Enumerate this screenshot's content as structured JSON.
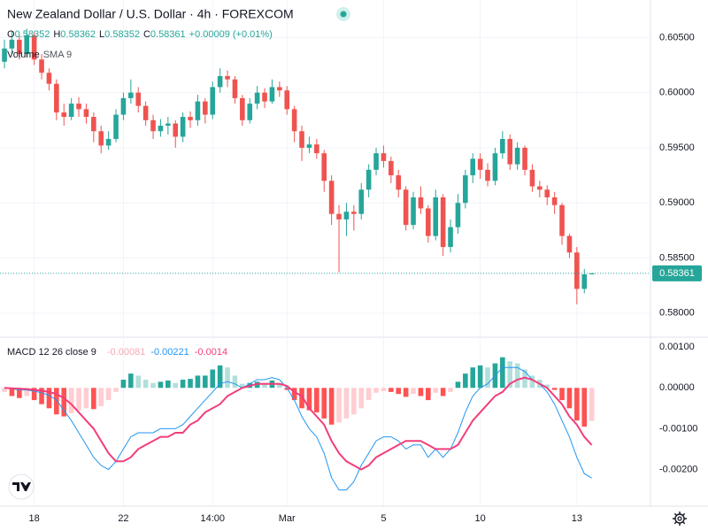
{
  "chart_data": [
    {
      "type": "candlestick",
      "title": "New Zealand Dollar / U.S. Dollar · 4h · FOREXCOM",
      "ohlc_labels": [
        "O",
        "H",
        "L",
        "C"
      ],
      "change": "+0.00009 (+0.01%)",
      "indicator": [
        "Volume",
        "SMA 9"
      ],
      "up_color": "#26a69a",
      "down_color": "#ef5350",
      "open": [
        0.6028,
        0.604,
        0.6048,
        0.6035,
        0.6052,
        0.603,
        0.6018,
        0.6008,
        0.5982,
        0.5978,
        0.599,
        0.5985,
        0.5978,
        0.5965,
        0.5952,
        0.5958,
        0.598,
        0.5995,
        0.6,
        0.5988,
        0.5975,
        0.5965,
        0.597,
        0.5972,
        0.596,
        0.5978,
        0.5975,
        0.5992,
        0.598,
        0.6005,
        0.6015,
        0.6012,
        0.5995,
        0.5975,
        0.599,
        0.6,
        0.5992,
        0.6005,
        0.6002,
        0.5985,
        0.5965,
        0.595,
        0.5953,
        0.5945,
        0.592,
        0.589,
        0.5885,
        0.5892,
        0.589,
        0.5912,
        0.593,
        0.5945,
        0.5938,
        0.5925,
        0.5912,
        0.588,
        0.5905,
        0.5895,
        0.587,
        0.5905,
        0.586,
        0.5878,
        0.59,
        0.5925,
        0.594,
        0.593,
        0.592,
        0.5945,
        0.5958,
        0.5935,
        0.595,
        0.593,
        0.5915,
        0.5912,
        0.5905,
        0.5898,
        0.587,
        0.5855,
        0.5822,
        0.58352
      ],
      "high": [
        0.6048,
        0.6056,
        0.6052,
        0.6058,
        0.6055,
        0.6035,
        0.6022,
        0.6012,
        0.599,
        0.5995,
        0.5996,
        0.599,
        0.5982,
        0.597,
        0.5965,
        0.5985,
        0.6,
        0.6012,
        0.6005,
        0.5992,
        0.598,
        0.5976,
        0.5978,
        0.5975,
        0.5982,
        0.5983,
        0.5998,
        0.5995,
        0.601,
        0.6022,
        0.602,
        0.6015,
        0.5998,
        0.5995,
        0.6006,
        0.6004,
        0.6012,
        0.601,
        0.6006,
        0.5988,
        0.597,
        0.596,
        0.5958,
        0.5948,
        0.5925,
        0.5898,
        0.59,
        0.5898,
        0.5918,
        0.5935,
        0.595,
        0.5952,
        0.5942,
        0.593,
        0.5915,
        0.591,
        0.5915,
        0.5898,
        0.5912,
        0.5908,
        0.5885,
        0.5908,
        0.593,
        0.5945,
        0.5945,
        0.5936,
        0.595,
        0.5965,
        0.5962,
        0.5955,
        0.5952,
        0.5935,
        0.592,
        0.5916,
        0.591,
        0.59,
        0.5872,
        0.586,
        0.584,
        0.58362
      ],
      "low": [
        0.6022,
        0.6035,
        0.603,
        0.6032,
        0.6025,
        0.6012,
        0.6002,
        0.5975,
        0.597,
        0.5975,
        0.5978,
        0.5972,
        0.5955,
        0.5945,
        0.5948,
        0.5955,
        0.5975,
        0.599,
        0.5982,
        0.597,
        0.5958,
        0.596,
        0.5962,
        0.595,
        0.5955,
        0.5968,
        0.597,
        0.5972,
        0.5976,
        0.6,
        0.6005,
        0.599,
        0.597,
        0.5972,
        0.5985,
        0.5986,
        0.599,
        0.5996,
        0.598,
        0.5955,
        0.5938,
        0.5945,
        0.594,
        0.591,
        0.588,
        0.5837,
        0.587,
        0.5875,
        0.5885,
        0.5905,
        0.5925,
        0.5932,
        0.5918,
        0.5905,
        0.5875,
        0.5876,
        0.589,
        0.5864,
        0.5866,
        0.5852,
        0.5855,
        0.5872,
        0.5895,
        0.5918,
        0.5922,
        0.5915,
        0.5916,
        0.594,
        0.593,
        0.593,
        0.5925,
        0.591,
        0.5905,
        0.5898,
        0.589,
        0.5862,
        0.585,
        0.5808,
        0.5818,
        0.58352
      ],
      "close": [
        0.604,
        0.6048,
        0.6035,
        0.6052,
        0.603,
        0.6018,
        0.6008,
        0.5982,
        0.5978,
        0.599,
        0.5985,
        0.5978,
        0.5965,
        0.5952,
        0.5958,
        0.598,
        0.5995,
        0.6,
        0.5988,
        0.5975,
        0.5965,
        0.597,
        0.5972,
        0.596,
        0.5978,
        0.5975,
        0.5992,
        0.598,
        0.6005,
        0.6015,
        0.6012,
        0.5995,
        0.5975,
        0.599,
        0.6,
        0.5992,
        0.6005,
        0.6002,
        0.5985,
        0.5965,
        0.595,
        0.5953,
        0.5945,
        0.592,
        0.589,
        0.5885,
        0.5892,
        0.589,
        0.5912,
        0.593,
        0.5945,
        0.5938,
        0.5925,
        0.5912,
        0.588,
        0.5905,
        0.5895,
        0.587,
        0.5905,
        0.586,
        0.5878,
        0.59,
        0.5925,
        0.594,
        0.593,
        0.592,
        0.5945,
        0.5958,
        0.5935,
        0.595,
        0.593,
        0.5915,
        0.5912,
        0.5905,
        0.5898,
        0.587,
        0.5855,
        0.5822,
        0.58352,
        0.58361
      ],
      "ylim": [
        0.5779,
        0.6084
      ],
      "yticks": [
        {
          "value": 0.605,
          "label": "0.60500"
        },
        {
          "value": 0.6,
          "label": "0.60000"
        },
        {
          "value": 0.595,
          "label": "0.59500"
        },
        {
          "value": 0.59,
          "label": "0.59000"
        },
        {
          "value": 0.585,
          "label": "0.58500"
        },
        {
          "value": 0.58,
          "label": "0.58000"
        }
      ],
      "xlim": [
        -0.6,
        86.9
      ],
      "xticks": [
        {
          "value": 4,
          "label": "18"
        },
        {
          "value": 16,
          "label": "22"
        },
        {
          "value": 28,
          "label": "14:00"
        },
        {
          "value": 38,
          "label": "Mar"
        },
        {
          "value": 51,
          "label": "5"
        },
        {
          "value": 64,
          "label": "10"
        },
        {
          "value": 77,
          "label": "13"
        }
      ],
      "grid": true
    },
    {
      "type": "macd",
      "label": "MACD 12 26 close 9",
      "histogram": {
        "colors": [
          "#26a69a",
          "#b2dfdb",
          "#ff5252",
          "#ffcdd2"
        ],
        "values": [
          -0.0001,
          -0.0002,
          -0.00025,
          -0.0002,
          -0.0003,
          -0.0004,
          -0.0005,
          -0.00065,
          -0.0007,
          -0.00062,
          -0.00055,
          -0.0005,
          -0.00052,
          -0.00045,
          -0.0003,
          -0.0001,
          0.0002,
          0.00035,
          0.0003,
          0.0002,
          0.00012,
          0.00015,
          0.00018,
          0.00012,
          0.0002,
          0.00022,
          0.0003,
          0.0003,
          0.00045,
          0.00055,
          0.0005,
          0.0003,
          0.0001,
          0.00012,
          0.00015,
          0.00012,
          0.00018,
          0.00012,
          -5e-05,
          -0.0003,
          -0.0005,
          -0.00055,
          -0.0006,
          -0.00075,
          -0.0009,
          -0.00085,
          -0.00075,
          -0.00065,
          -0.0005,
          -0.0003,
          -0.00012,
          -8e-05,
          -0.0001,
          -0.00015,
          -0.00022,
          -0.00015,
          -0.0002,
          -0.0003,
          -0.00012,
          -0.0002,
          -0.0001,
          0.00015,
          0.00035,
          0.0005,
          0.00055,
          0.0005,
          0.0006,
          0.00075,
          0.00065,
          0.0006,
          0.00045,
          0.0003,
          0.0002,
          8e-05,
          -5e-05,
          -0.0003,
          -0.0005,
          -0.0008,
          -0.00095,
          -0.00081
        ]
      },
      "macd": {
        "color": "#2196f3",
        "values": [
          0,
          -2e-05,
          -5e-05,
          -5e-05,
          -8e-05,
          -0.00012,
          -0.00018,
          -0.0003,
          -0.00055,
          -0.0008,
          -0.0011,
          -0.0014,
          -0.0017,
          -0.0019,
          -0.002,
          -0.0018,
          -0.0015,
          -0.0012,
          -0.0011,
          -0.0011,
          -0.0011,
          -0.001,
          -0.001,
          -0.001,
          -0.0009,
          -0.0007,
          -0.0005,
          -0.0003,
          -0.0001,
          0.0001,
          0.00015,
          0.0001,
          0,
          0.0001,
          0.0002,
          0.0002,
          0.00025,
          0.0002,
          0,
          -0.0003,
          -0.0007,
          -0.001,
          -0.0012,
          -0.0016,
          -0.0022,
          -0.0025,
          -0.0025,
          -0.0023,
          -0.0019,
          -0.0016,
          -0.0013,
          -0.0012,
          -0.0012,
          -0.0013,
          -0.0015,
          -0.0014,
          -0.0014,
          -0.0017,
          -0.0015,
          -0.0017,
          -0.0015,
          -0.0011,
          -0.0006,
          -0.0002,
          0,
          0.0001,
          0.0003,
          0.0005,
          0.0005,
          0.0005,
          0.0004,
          0.0002,
          0.0001,
          -0.0001,
          -0.0004,
          -0.0008,
          -0.0012,
          -0.0017,
          -0.0021,
          -0.00221
        ]
      },
      "signal": {
        "color": "#f23e7a",
        "values": [
          0,
          -1e-05,
          -2e-05,
          -3e-05,
          -5e-05,
          -7e-05,
          -0.0001,
          -0.00015,
          -0.00025,
          -0.0004,
          -0.0006,
          -0.0008,
          -0.001,
          -0.0013,
          -0.0016,
          -0.0018,
          -0.0018,
          -0.0017,
          -0.0015,
          -0.0014,
          -0.0013,
          -0.0012,
          -0.0012,
          -0.0011,
          -0.0011,
          -0.0009,
          -0.0008,
          -0.0006,
          -0.0005,
          -0.0004,
          -0.0002,
          -0.0001,
          0,
          5e-05,
          0.0001,
          0.0001,
          0.0001,
          0.0001,
          5e-05,
          -0.0001,
          -0.0002,
          -0.0005,
          -0.0007,
          -0.0009,
          -0.0013,
          -0.0016,
          -0.0018,
          -0.0019,
          -0.002,
          -0.0019,
          -0.0017,
          -0.0016,
          -0.0015,
          -0.0014,
          -0.0013,
          -0.0013,
          -0.0013,
          -0.0014,
          -0.0015,
          -0.0015,
          -0.0015,
          -0.0014,
          -0.0011,
          -0.0008,
          -0.0006,
          -0.0004,
          -0.0002,
          -0.0001,
          0.0001,
          0.0002,
          0.00025,
          0.0002,
          0.0001,
          0,
          -0.0002,
          -0.0004,
          -0.0007,
          -0.0009,
          -0.0012,
          -0.0014
        ]
      },
      "ylim": [
        -0.0029,
        0.00122
      ],
      "yticks": [
        {
          "value": 0.001,
          "label": "0.00100"
        },
        {
          "value": 0,
          "label": "0.00000"
        },
        {
          "value": -0.001,
          "label": "-0.00100"
        },
        {
          "value": -0.002,
          "label": "-0.00200"
        }
      ]
    }
  ]
}
